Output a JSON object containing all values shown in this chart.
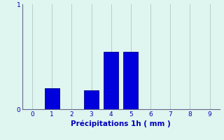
{
  "categories": [
    0,
    1,
    2,
    3,
    4,
    5,
    6,
    7,
    8,
    9
  ],
  "values": [
    0,
    0.2,
    0,
    0.18,
    0.55,
    0.55,
    0,
    0,
    0,
    0
  ],
  "bar_color": "#0000dd",
  "bar_edge_color": "#000088",
  "background_color": "#dff5f0",
  "grid_color": "#aabbc0",
  "xlabel": "Précipitations 1h ( mm )",
  "xlabel_color": "#0000bb",
  "tick_color": "#0000bb",
  "spine_color": "#666688",
  "ylim": [
    0,
    1.0
  ],
  "xlim": [
    -0.5,
    9.5
  ],
  "yticks": [
    0,
    1
  ],
  "xticks": [
    0,
    1,
    2,
    3,
    4,
    5,
    6,
    7,
    8,
    9
  ],
  "bar_width": 0.75
}
